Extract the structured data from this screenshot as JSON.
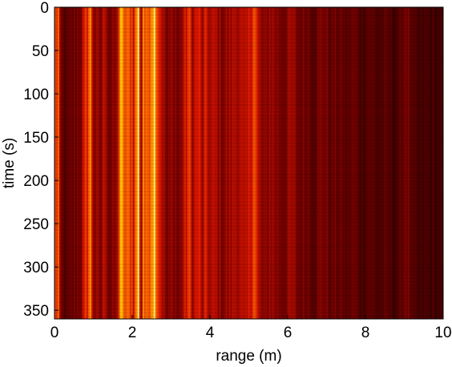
{
  "chart_data": {
    "type": "heatmap",
    "title": "",
    "xlabel": "range (m)",
    "ylabel": "time (s)",
    "xlim": [
      0,
      10
    ],
    "ylim": [
      0,
      360
    ],
    "y_direction": "reversed",
    "xticks": [
      0,
      2,
      4,
      6,
      8,
      10
    ],
    "yticks": [
      0,
      50,
      100,
      150,
      200,
      250,
      300,
      350
    ],
    "colormap": "hot",
    "colormap_stops": [
      "#000000",
      "#6e0000",
      "#dc1400",
      "#ff7800",
      "#ffd200",
      "#ffffa0"
    ],
    "grid": false,
    "intensity_profile": {
      "range_m": [
        0.0,
        0.1,
        0.15,
        0.3,
        0.5,
        0.7,
        0.85,
        0.92,
        1.0,
        1.2,
        1.3,
        1.4,
        1.6,
        1.7,
        1.78,
        1.85,
        1.95,
        2.05,
        2.1,
        2.18,
        2.22,
        2.28,
        2.35,
        2.45,
        2.52,
        2.58,
        2.65,
        2.72,
        2.8,
        2.9,
        3.05,
        3.2,
        3.35,
        3.45,
        3.55,
        3.7,
        3.8,
        3.9,
        4.0,
        4.15,
        4.3,
        4.5,
        4.7,
        4.9,
        5.05,
        5.12,
        5.25,
        5.4,
        5.55,
        5.7,
        5.9,
        6.1,
        6.3,
        6.5,
        6.7,
        6.9,
        7.1,
        7.3,
        7.5,
        7.7,
        7.9,
        8.1,
        8.3,
        8.5,
        8.7,
        8.9,
        9.05,
        9.2,
        9.4,
        9.6,
        9.8,
        10.0
      ],
      "intensity": [
        0.45,
        0.55,
        0.2,
        0.15,
        0.2,
        0.25,
        0.5,
        0.62,
        0.28,
        0.22,
        0.4,
        0.2,
        0.25,
        0.68,
        0.6,
        0.48,
        0.55,
        0.4,
        0.6,
        0.95,
        0.05,
        0.7,
        0.45,
        0.65,
        0.78,
        0.88,
        0.55,
        0.42,
        0.3,
        0.2,
        0.28,
        0.2,
        0.35,
        0.48,
        0.3,
        0.42,
        0.28,
        0.38,
        0.3,
        0.32,
        0.25,
        0.28,
        0.35,
        0.28,
        0.4,
        0.6,
        0.3,
        0.22,
        0.3,
        0.25,
        0.22,
        0.28,
        0.2,
        0.22,
        0.18,
        0.24,
        0.18,
        0.2,
        0.16,
        0.2,
        0.14,
        0.18,
        0.14,
        0.16,
        0.13,
        0.15,
        0.25,
        0.14,
        0.12,
        0.13,
        0.12,
        0.12
      ]
    }
  }
}
